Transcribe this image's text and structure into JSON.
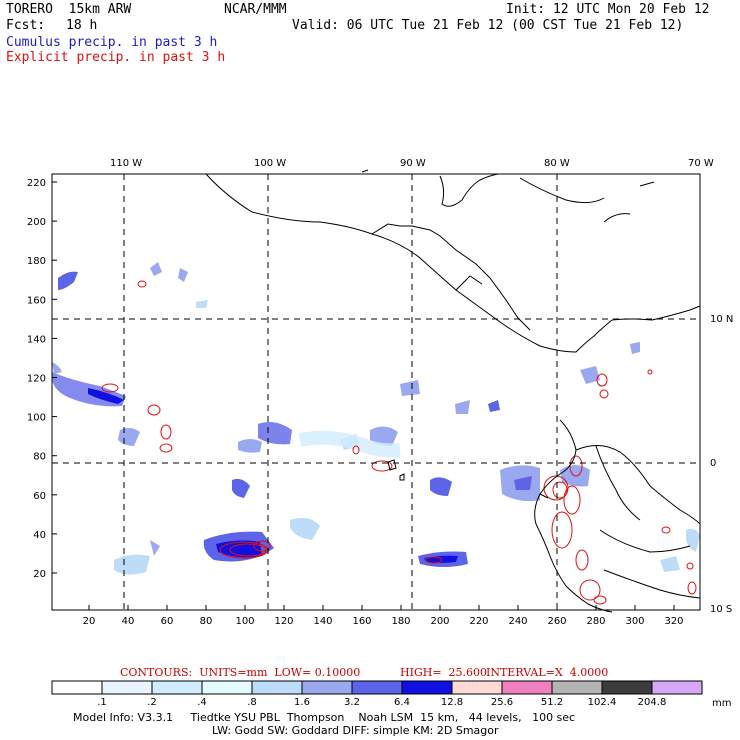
{
  "header": {
    "model": "TORERO  15km ARW",
    "org": "NCAR/MMM",
    "init": "Init: 12 UTC Mon 20 Feb 12",
    "fcst_label": "Fcst:",
    "fcst_value": "18 h",
    "valid": "Valid: 06 UTC Tue 21 Feb 12 (00 CST Tue 21 Feb 12)",
    "line_blue": "Cumulus precip. in past 3 h",
    "line_red": "Explicit precip. in past 3 h"
  },
  "map": {
    "top_lon_labels": [
      "110 W",
      "100 W",
      "90 W",
      "80 W",
      "70 W"
    ],
    "right_lat_labels": [
      "10 N",
      "0",
      "10 S"
    ],
    "y_ticks": [
      "220",
      "200",
      "180",
      "160",
      "140",
      "120",
      "100",
      "80",
      "60",
      "40",
      "20"
    ],
    "x_ticks": [
      "20",
      "40",
      "60",
      "80",
      "100",
      "120",
      "140",
      "160",
      "180",
      "200",
      "220",
      "240",
      "260",
      "280",
      "300",
      "320"
    ]
  },
  "contours": {
    "units": "CONTOURS:  UNITS=mm  LOW= 0.10000",
    "high": "HIGH=  25.600",
    "interval": "INTERVAL=X  4.0000"
  },
  "colorbar": {
    "labels": [
      ".1",
      ".2",
      ".4",
      ".8",
      "1.6",
      "3.2",
      "6.4",
      "12.8",
      "25.6",
      "51.2",
      "102.4",
      "204.8"
    ],
    "unit": "mm",
    "colors": [
      "#ffffff",
      "#e8f4ff",
      "#d2ecff",
      "#e6fbff",
      "#bcdcf8",
      "#9aa8f0",
      "#5c64e8",
      "#1010e0",
      "#ffd8d8",
      "#f080c0",
      "#b4b4b4",
      "#3c3c3c",
      "#d8a8f8"
    ]
  },
  "footer": {
    "line1": "Model Info: V3.3.1     Tiedtke YSU PBL  Thompson    Noah LSM  15 km,   44 levels,   100 sec",
    "line2": "LW: Godd SW: Goddard DIFF: simple KM: 2D Smagor"
  }
}
